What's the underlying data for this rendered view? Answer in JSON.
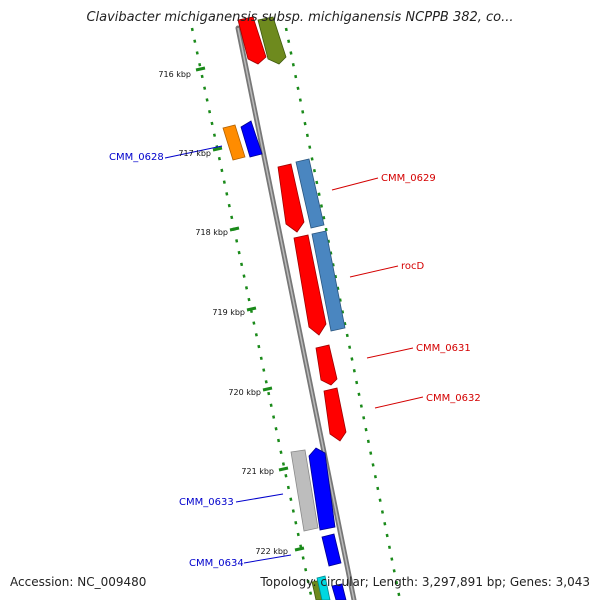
{
  "title": "Clavibacter michiganensis subsp. michiganensis NCPPB 382, co...",
  "accession": "Accession: NC_009480",
  "summary": "Topology: circular; Length: 3,297,891 bp; Genes: 3,043",
  "kbp_ticks": [
    "716 kbp",
    "717 kbp",
    "718 kbp",
    "719 kbp",
    "720 kbp",
    "721 kbp",
    "722 kbp"
  ],
  "gene_labels": [
    "CMM_0628",
    "CMM_0629",
    "rocD",
    "CMM_0631",
    "CMM_0632",
    "CMM_0633",
    "CMM_0634"
  ],
  "colors": {
    "forward_label": "#d40000",
    "reverse_label": "#0000cc",
    "ruler": "#1a8a1a",
    "red": "#ff0000",
    "blue": "#0000ff",
    "steelblue": "#4a86c0",
    "olive": "#6e8a1e",
    "orange": "#ff8c00",
    "gray": "#bdbdbd",
    "cyan": "#00d8e0"
  }
}
